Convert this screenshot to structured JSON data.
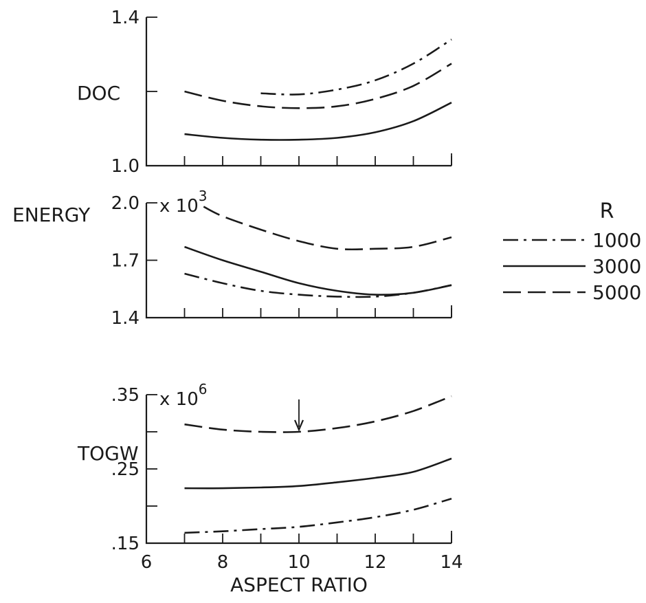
{
  "chart_data": {
    "type": "line",
    "xlabel": "ASPECT RATIO",
    "x_ticks": [
      "6",
      "8",
      "10",
      "12",
      "14"
    ],
    "xlim": [
      6,
      14
    ],
    "legend": {
      "title": "R",
      "placement": "right",
      "entries": [
        {
          "label": "1000",
          "style": "dash-dot"
        },
        {
          "label": "3000",
          "style": "solid"
        },
        {
          "label": "5000",
          "style": "dashed"
        }
      ]
    },
    "panels": [
      {
        "id": "doc",
        "ylabel": "DOC",
        "multiplier": "",
        "ylim": [
          1.0,
          1.4
        ],
        "y_ticks": [
          {
            "value": 1.0,
            "label": "1.0"
          },
          {
            "value": 1.2,
            "label": ""
          },
          {
            "value": 1.4,
            "label": "1.4"
          }
        ],
        "series": [
          {
            "name": "1000",
            "style": "dash-dot",
            "x": [
              9,
              10,
              11,
              12,
              13,
              14
            ],
            "y": [
              1.195,
              1.192,
              1.205,
              1.23,
              1.275,
              1.34
            ]
          },
          {
            "name": "3000",
            "style": "solid",
            "x": [
              7,
              8,
              9,
              10,
              11,
              12,
              13,
              14
            ],
            "y": [
              1.085,
              1.075,
              1.07,
              1.07,
              1.075,
              1.09,
              1.12,
              1.17
            ]
          },
          {
            "name": "5000",
            "style": "dashed",
            "x": [
              7,
              8,
              9,
              10,
              11,
              12,
              13,
              14
            ],
            "y": [
              1.2,
              1.175,
              1.16,
              1.155,
              1.16,
              1.18,
              1.215,
              1.275
            ]
          }
        ]
      },
      {
        "id": "energy",
        "ylabel": "ENERGY",
        "multiplier": "x 10",
        "multiplier_exp": "3",
        "ylim": [
          1.4,
          2.0
        ],
        "y_ticks": [
          {
            "value": 1.4,
            "label": "1.4"
          },
          {
            "value": 1.7,
            "label": "1.7"
          },
          {
            "value": 2.0,
            "label": "2.0"
          }
        ],
        "series": [
          {
            "name": "1000",
            "style": "dash-dot",
            "x": [
              7,
              8,
              9,
              10,
              11,
              12,
              13,
              14
            ],
            "y": [
              1.63,
              1.58,
              1.54,
              1.52,
              1.51,
              1.51,
              1.53,
              1.57
            ]
          },
          {
            "name": "3000",
            "style": "solid",
            "x": [
              7,
              8,
              9,
              10,
              11,
              12,
              13,
              14
            ],
            "y": [
              1.77,
              1.7,
              1.64,
              1.58,
              1.54,
              1.52,
              1.53,
              1.57
            ]
          },
          {
            "name": "5000",
            "style": "dashed",
            "x": [
              7.5,
              8,
              9,
              10,
              11,
              12,
              13,
              14
            ],
            "y": [
              1.98,
              1.93,
              1.86,
              1.8,
              1.76,
              1.76,
              1.77,
              1.82
            ]
          }
        ]
      },
      {
        "id": "togw",
        "ylabel": "TOGW",
        "multiplier": "x 10",
        "multiplier_exp": "6",
        "ylim": [
          0.15,
          0.35
        ],
        "y_ticks": [
          {
            "value": 0.15,
            "label": ".15"
          },
          {
            "value": 0.2,
            "label": ""
          },
          {
            "value": 0.25,
            "label": ".25"
          },
          {
            "value": 0.3,
            "label": ""
          },
          {
            "value": 0.35,
            "label": ".35"
          }
        ],
        "marker": {
          "x": 10,
          "y": 0.301,
          "symbol": "arrow-down"
        },
        "series": [
          {
            "name": "1000",
            "style": "dash-dot",
            "x": [
              7,
              8,
              9,
              10,
              11,
              12,
              13,
              14
            ],
            "y": [
              0.164,
              0.166,
              0.169,
              0.172,
              0.178,
              0.185,
              0.195,
              0.21
            ]
          },
          {
            "name": "3000",
            "style": "solid",
            "x": [
              7,
              8,
              9,
              10,
              11,
              12,
              13,
              14
            ],
            "y": [
              0.224,
              0.224,
              0.225,
              0.227,
              0.232,
              0.238,
              0.246,
              0.264
            ]
          },
          {
            "name": "5000",
            "style": "dashed",
            "x": [
              7,
              8,
              9,
              10,
              11,
              12,
              13,
              14
            ],
            "y": [
              0.31,
              0.303,
              0.3,
              0.3,
              0.305,
              0.314,
              0.328,
              0.348
            ]
          }
        ]
      }
    ]
  }
}
